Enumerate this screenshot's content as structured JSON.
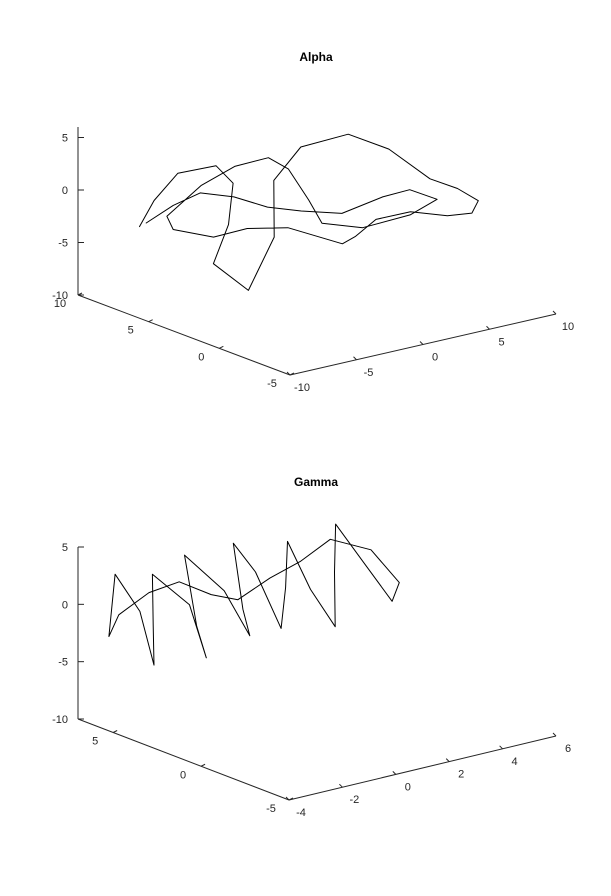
{
  "chart_data": [
    {
      "type": "line",
      "title": "Alpha",
      "x_ticks": [
        -10,
        -5,
        0,
        5,
        10
      ],
      "y_ticks": [
        -5,
        0,
        5,
        10
      ],
      "z_ticks": [
        -10,
        -5,
        0,
        5
      ],
      "xlim": [
        -10,
        10
      ],
      "ylim": [
        -5,
        10
      ],
      "zlim": [
        -10,
        6
      ],
      "grid": false,
      "series": [
        {
          "color": "#000000",
          "points": [
            [
              -7.5,
              8.0,
              -3.2
            ],
            [
              -8.0,
              6.5,
              0.2
            ],
            [
              -7.8,
              5.0,
              3.5
            ],
            [
              -6.0,
              4.0,
              4.2
            ],
            [
              -4.5,
              4.2,
              2.0
            ],
            [
              -4.0,
              5.0,
              -2.5
            ],
            [
              -4.6,
              5.5,
              -6.3
            ],
            [
              -2.5,
              5.0,
              -9.2
            ],
            [
              0.5,
              6.0,
              -5.5
            ],
            [
              1.0,
              6.5,
              -0.5
            ],
            [
              2.5,
              6.0,
              2.5
            ],
            [
              5.0,
              5.0,
              3.5
            ],
            [
              7.0,
              4.0,
              2.0
            ],
            [
              8.5,
              2.5,
              -0.5
            ],
            [
              9.5,
              1.5,
              -1.2
            ],
            [
              10.0,
              0.5,
              -2.0
            ],
            [
              9.2,
              0.2,
              -2.8
            ],
            [
              8.0,
              0.8,
              -3.0
            ],
            [
              6.5,
              2.0,
              -2.8
            ],
            [
              5.5,
              3.5,
              -4.0
            ],
            [
              5.0,
              4.5,
              -6.0
            ],
            [
              3.5,
              4.0,
              -6.0
            ],
            [
              1.0,
              5.5,
              -4.5
            ],
            [
              -1.0,
              6.5,
              -4.5
            ],
            [
              -3.0,
              7.0,
              -5.0
            ],
            [
              -5.5,
              7.5,
              -3.8
            ],
            [
              -6.5,
              7.0,
              -2.0
            ],
            [
              -5.0,
              6.0,
              1.0
            ],
            [
              -3.0,
              5.5,
              2.5
            ],
            [
              -1.0,
              5.0,
              3.0
            ],
            [
              0.5,
              5.0,
              1.5
            ],
            [
              1.5,
              4.5,
              -1.5
            ],
            [
              2.5,
              4.5,
              -4.0
            ],
            [
              4.5,
              3.5,
              -4.5
            ],
            [
              7.0,
              2.5,
              -3.5
            ],
            [
              8.5,
              2.0,
              -2.2
            ],
            [
              7.5,
              3.0,
              -1.5
            ],
            [
              6.0,
              3.5,
              -2.0
            ],
            [
              4.0,
              4.5,
              -3.5
            ],
            [
              2.0,
              5.5,
              -3.2
            ],
            [
              0.0,
              6.0,
              -2.5
            ],
            [
              -2.0,
              6.5,
              -1.2
            ],
            [
              -4.0,
              7.0,
              -0.5
            ],
            [
              -5.5,
              7.5,
              -1.5
            ],
            [
              -7.0,
              8.0,
              -3.0
            ]
          ]
        }
      ]
    },
    {
      "type": "line",
      "title": "Gamma",
      "x_ticks": [
        -4,
        -2,
        0,
        2,
        4,
        6
      ],
      "y_ticks": [
        -5,
        0,
        5
      ],
      "z_ticks": [
        -10,
        -5,
        0,
        5
      ],
      "xlim": [
        -4,
        6
      ],
      "ylim": [
        -5,
        7
      ],
      "zlim": [
        -10,
        5
      ],
      "grid": false,
      "series": [
        {
          "color": "#000000",
          "points": [
            [
              -3.5,
              6.0,
              -2.5
            ],
            [
              -3.4,
              5.8,
              3.0
            ],
            [
              -3.0,
              5.0,
              0.0
            ],
            [
              -2.8,
              4.5,
              -4.5
            ],
            [
              -2.5,
              5.0,
              -1.5
            ],
            [
              -2.2,
              5.5,
              2.5
            ],
            [
              -1.8,
              4.0,
              0.5
            ],
            [
              -1.5,
              3.5,
              -4.0
            ],
            [
              -1.2,
              4.5,
              -2.0
            ],
            [
              -1.0,
              5.5,
              3.5
            ],
            [
              -0.5,
              4.0,
              1.0
            ],
            [
              -0.2,
              3.0,
              -2.5
            ],
            [
              0.2,
              4.0,
              -1.0
            ],
            [
              0.5,
              5.0,
              4.0
            ],
            [
              1.0,
              4.5,
              1.5
            ],
            [
              1.3,
              3.5,
              -3.0
            ],
            [
              1.8,
              4.0,
              0.0
            ],
            [
              2.2,
              4.5,
              3.5
            ],
            [
              2.6,
              3.8,
              -0.5
            ],
            [
              3.0,
              3.0,
              -3.5
            ],
            [
              3.5,
              3.8,
              0.5
            ],
            [
              4.0,
              4.5,
              4.0
            ],
            [
              4.4,
              3.5,
              1.0
            ],
            [
              4.8,
              2.5,
              -2.0
            ],
            [
              5.4,
              3.0,
              -1.0
            ],
            [
              5.0,
              4.0,
              1.5
            ],
            [
              4.0,
              4.8,
              2.5
            ],
            [
              3.0,
              5.0,
              1.0
            ],
            [
              2.0,
              5.2,
              0.0
            ],
            [
              1.0,
              5.5,
              -1.5
            ],
            [
              0.0,
              5.5,
              -0.5
            ],
            [
              -1.0,
              5.8,
              1.0
            ],
            [
              -2.0,
              6.0,
              0.5
            ],
            [
              -3.0,
              6.2,
              -1.0
            ],
            [
              -3.5,
              6.0,
              -2.5
            ]
          ]
        }
      ]
    }
  ]
}
